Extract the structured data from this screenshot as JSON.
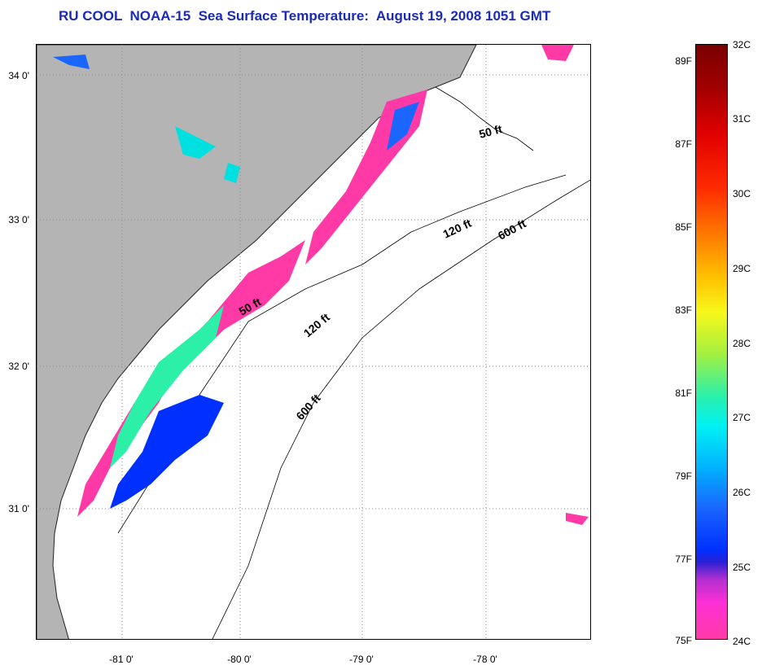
{
  "title": "RU COOL  NOAA-15  Sea Surface Temperature:  August 19, 2008 1051 GMT",
  "latitude_labels": [
    "34 0'",
    "33 0'",
    "32 0'",
    "31 0'"
  ],
  "longitude_labels": [
    "-81 0'",
    "-80 0'",
    "-79 0'",
    "-78 0'"
  ],
  "isobath_labels": [
    "50 ft",
    "120 ft",
    "600 ft",
    "50 ft",
    "120 ft",
    "600 ft"
  ],
  "colorbar": {
    "fahrenheit": [
      "89F",
      "87F",
      "85F",
      "83F",
      "81F",
      "79F",
      "77F",
      "75F"
    ],
    "celsius": [
      "32C",
      "31C",
      "30C",
      "29C",
      "28C",
      "27C",
      "26C",
      "25C",
      "24C"
    ]
  },
  "colors": {
    "land": "#b4b4b4",
    "title": "#1b2bb8",
    "cold": "#ff3aa6",
    "warm": "#00e0e0"
  }
}
